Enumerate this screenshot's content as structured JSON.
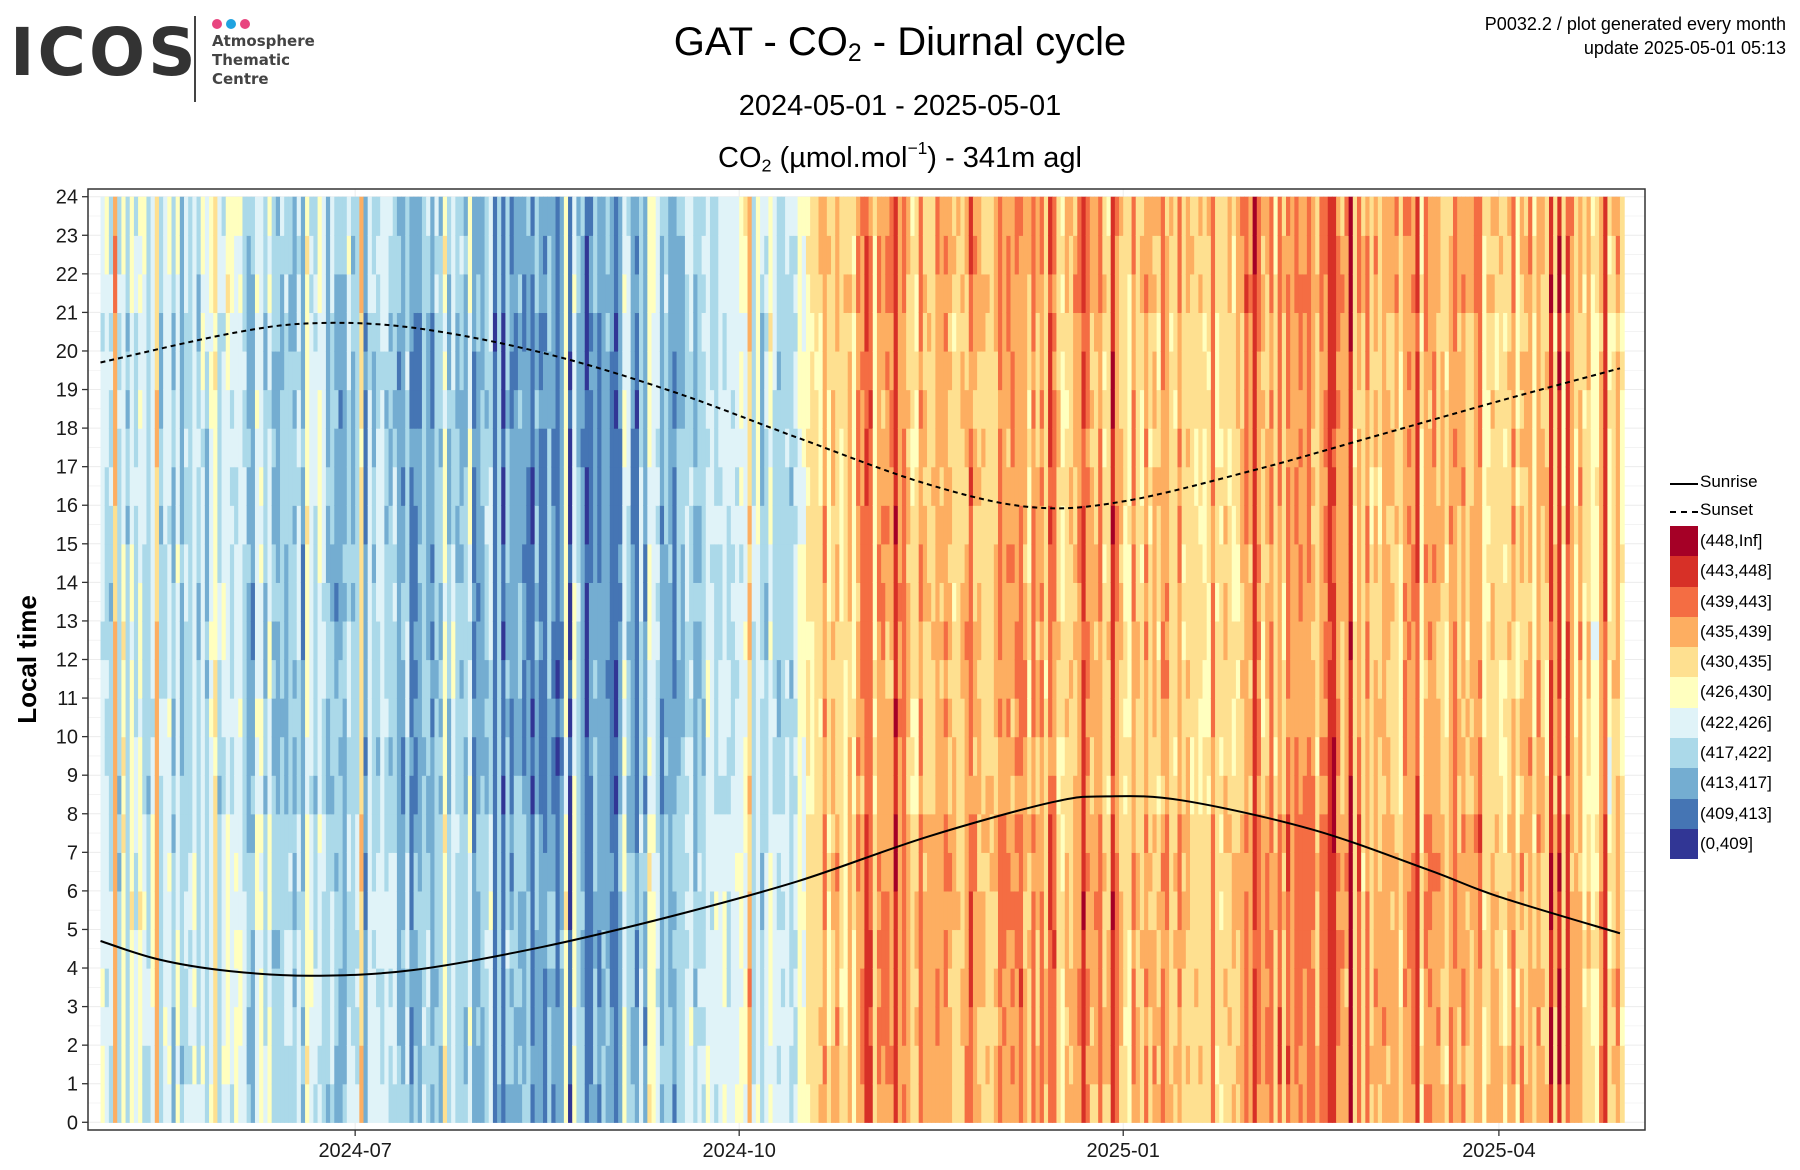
{
  "logo": {
    "word": "ICOS",
    "subtitle_lines": [
      "Atmosphere",
      "Thematic",
      "Centre"
    ],
    "dot_colors": [
      "#e8457f",
      "#1fa3e0",
      "#e8457f"
    ]
  },
  "meta": {
    "line1": "P0032.2 / plot generated every month",
    "line2": "update  2025-05-01 05:13"
  },
  "title": {
    "prefix": "GAT - CO",
    "sub": "2",
    "suffix": " - Diurnal cycle"
  },
  "period": "2024-05-01 - 2025-05-01",
  "variable": {
    "prefix": "CO",
    "sub": "2",
    "unit_open": " (µmol.mol",
    "unit_sup": "−1",
    "unit_close": ") - 341m agl"
  },
  "legend": {
    "sunrise_label": "Sunrise",
    "sunset_label": "Sunset",
    "bins": [
      {
        "label": "(448,Inf]",
        "color": "#a50026"
      },
      {
        "label": "(443,448]",
        "color": "#d73027"
      },
      {
        "label": "(439,443]",
        "color": "#f46d43"
      },
      {
        "label": "(435,439]",
        "color": "#fdae61"
      },
      {
        "label": "(430,435]",
        "color": "#fee090"
      },
      {
        "label": "(426,430]",
        "color": "#ffffbf"
      },
      {
        "label": "(422,426]",
        "color": "#e0f3f8"
      },
      {
        "label": "(417,422]",
        "color": "#abd9e9"
      },
      {
        "label": "(413,417]",
        "color": "#74add1"
      },
      {
        "label": "(409,413]",
        "color": "#4575b4"
      },
      {
        "label": "(0,409]",
        "color": "#313695"
      }
    ]
  },
  "chart_data": {
    "type": "heatmap",
    "title": "GAT - CO2 - Diurnal cycle",
    "subtitle": "2024-05-01 - 2025-05-01",
    "ylabel": "Local time",
    "y_ticks": [
      0,
      1,
      2,
      3,
      4,
      5,
      6,
      7,
      8,
      9,
      10,
      11,
      12,
      13,
      14,
      15,
      16,
      17,
      18,
      19,
      20,
      21,
      22,
      23,
      24
    ],
    "x_ticks": [
      "2024-07",
      "2024-10",
      "2025-01",
      "2025-04"
    ],
    "x_range": [
      "2024-04-28",
      "2025-05-06"
    ],
    "y_range": [
      -0.2,
      24.2
    ],
    "data_x_range": [
      "2024-05-01",
      "2025-04-30"
    ],
    "grid": true,
    "legend_position": "right",
    "value_unit": "µmol.mol-1",
    "bin_edges": [
      0,
      409,
      413,
      417,
      422,
      426,
      430,
      435,
      439,
      443,
      448,
      "Inf"
    ],
    "series": [
      {
        "name": "Sunrise",
        "style": "solid",
        "points": [
          {
            "date": "2024-05-01",
            "hour": 4.7
          },
          {
            "date": "2024-05-15",
            "hour": 4.22
          },
          {
            "date": "2024-06-01",
            "hour": 3.92
          },
          {
            "date": "2024-06-21",
            "hour": 3.8
          },
          {
            "date": "2024-07-15",
            "hour": 3.95
          },
          {
            "date": "2024-08-15",
            "hour": 4.55
          },
          {
            "date": "2024-09-15",
            "hour": 5.35
          },
          {
            "date": "2024-10-15",
            "hour": 6.25
          },
          {
            "date": "2024-11-15",
            "hour": 7.4
          },
          {
            "date": "2024-12-15",
            "hour": 8.3
          },
          {
            "date": "2024-12-28",
            "hour": 8.45
          },
          {
            "date": "2025-01-15",
            "hour": 8.35
          },
          {
            "date": "2025-02-15",
            "hour": 7.6
          },
          {
            "date": "2025-03-15",
            "hour": 6.55
          },
          {
            "date": "2025-04-01",
            "hour": 5.85
          },
          {
            "date": "2025-04-30",
            "hour": 4.9
          }
        ]
      },
      {
        "name": "Sunset",
        "style": "dashed",
        "points": [
          {
            "date": "2024-05-01",
            "hour": 19.7
          },
          {
            "date": "2024-06-01",
            "hour": 20.45
          },
          {
            "date": "2024-06-21",
            "hour": 20.72
          },
          {
            "date": "2024-07-15",
            "hour": 20.6
          },
          {
            "date": "2024-08-15",
            "hour": 19.95
          },
          {
            "date": "2024-09-15",
            "hour": 18.95
          },
          {
            "date": "2024-10-15",
            "hour": 17.75
          },
          {
            "date": "2024-11-15",
            "hour": 16.55
          },
          {
            "date": "2024-12-10",
            "hour": 15.95
          },
          {
            "date": "2025-01-01",
            "hour": 16.1
          },
          {
            "date": "2025-02-01",
            "hour": 16.9
          },
          {
            "date": "2025-03-01",
            "hour": 17.75
          },
          {
            "date": "2025-04-01",
            "hour": 18.7
          },
          {
            "date": "2025-04-30",
            "hour": 19.55
          }
        ]
      }
    ],
    "bin_trend": [
      {
        "date": "2024-05-01",
        "bin": 6.2
      },
      {
        "date": "2024-06-15",
        "bin": 6.9
      },
      {
        "date": "2024-07-20",
        "bin": 7.8
      },
      {
        "date": "2024-08-10",
        "bin": 8.6
      },
      {
        "date": "2024-09-01",
        "bin": 8.1
      },
      {
        "date": "2024-10-01",
        "bin": 6.6
      },
      {
        "date": "2024-10-15",
        "bin": 6.0
      },
      {
        "date": "2024-10-17",
        "bin": 4.2
      },
      {
        "date": "2024-11-15",
        "bin": 3.3
      },
      {
        "date": "2025-01-01",
        "bin": 3.6
      },
      {
        "date": "2025-02-15",
        "bin": 3.3
      },
      {
        "date": "2025-04-30",
        "bin": 4.2
      }
    ]
  }
}
